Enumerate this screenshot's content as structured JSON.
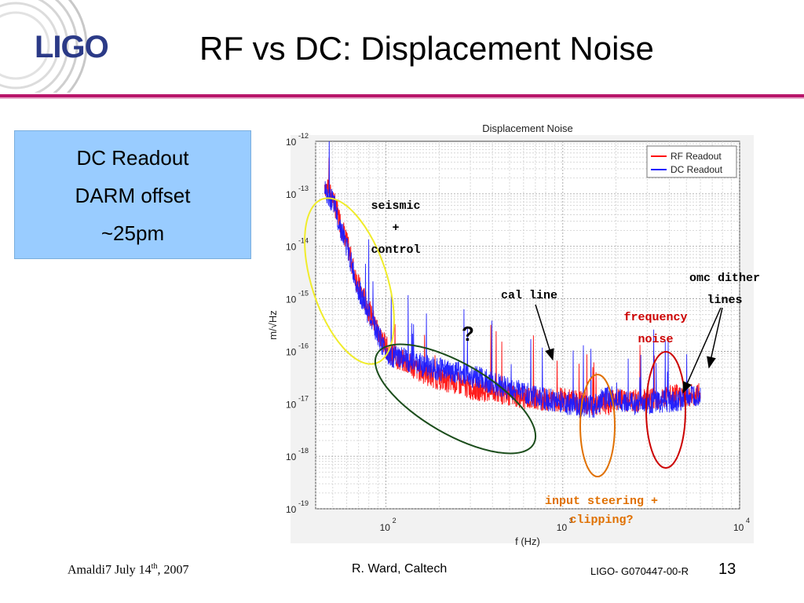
{
  "slide": {
    "logo": "LIGO",
    "title": "RF vs DC: Displacement Noise",
    "info_box": [
      "DC Readout",
      "DARM offset",
      "~25pm"
    ],
    "footer": {
      "left": "Amaldi7 July 14",
      "left_sup": "th",
      "left_end": ", 2007",
      "center": "R. Ward, Caltech",
      "doc_id": "LIGO- G070447-00-R",
      "page": "13"
    },
    "colors": {
      "accent_rule": "#b8156a",
      "info_box": "#99ccff",
      "logo": "#2b3a87"
    }
  },
  "chart_data": {
    "type": "line",
    "title": "Displacement Noise",
    "xlabel": "f (Hz)",
    "ylabel": "m/√Hz",
    "xscale": "log",
    "yscale": "log",
    "xlim": [
      40,
      10000
    ],
    "ylim": [
      1e-19,
      1e-12
    ],
    "x_ticks": [
      "10^2",
      "10^3",
      "10^4"
    ],
    "y_ticks": [
      "10^-12",
      "10^-13",
      "10^-14",
      "10^-15",
      "10^-16",
      "10^-17",
      "10^-18",
      "10^-19"
    ],
    "grid": true,
    "legend": "top-right",
    "series": [
      {
        "name": "RF Readout",
        "color": "#ff1010",
        "x": [
          45,
          50,
          55,
          60,
          65,
          70,
          80,
          90,
          100,
          110,
          130,
          160,
          200,
          250,
          300,
          400,
          500,
          600,
          800,
          1000,
          1200,
          1500,
          1800,
          2000,
          2500,
          3000,
          3500,
          4000,
          5000,
          6000
        ],
        "y": [
          1.5e-13,
          8e-14,
          3e-14,
          1.2e-14,
          4e-15,
          1.8e-15,
          6e-16,
          2.5e-16,
          1.2e-16,
          8e-17,
          6e-17,
          4e-17,
          3e-17,
          2.5e-17,
          2e-17,
          1.7e-17,
          1.5e-17,
          1.3e-17,
          1.2e-17,
          1.2e-17,
          1.1e-17,
          1e-17,
          1e-17,
          1.2e-17,
          1.1e-17,
          1.3e-17,
          1.3e-17,
          1.4e-17,
          1.4e-17,
          1.5e-17
        ]
      },
      {
        "name": "DC Readout",
        "color": "#1a1aff",
        "x": [
          45,
          50,
          55,
          60,
          65,
          70,
          80,
          90,
          100,
          110,
          130,
          160,
          200,
          250,
          300,
          400,
          500,
          600,
          800,
          1000,
          1200,
          1500,
          1800,
          2000,
          2500,
          3000,
          3500,
          4000,
          5000,
          6000
        ],
        "y": [
          1.3e-13,
          7e-14,
          2.5e-14,
          1e-14,
          3.5e-15,
          1.5e-15,
          5e-16,
          2e-16,
          1e-16,
          8e-17,
          7e-17,
          5.5e-17,
          4.5e-17,
          4e-17,
          3.5e-17,
          2.5e-17,
          2e-17,
          1.6e-17,
          1.2e-17,
          1.1e-17,
          9e-18,
          9e-18,
          1.4e-17,
          1.2e-17,
          1e-17,
          1e-17,
          1.1e-17,
          1.1e-17,
          1.3e-17,
          1.5e-17
        ]
      }
    ],
    "annotations": [
      {
        "text": [
          "seismic",
          "+",
          "control"
        ],
        "color": "#000000",
        "shape": "yellow-ellipse"
      },
      {
        "text": [
          "?"
        ],
        "color": "#000000",
        "shape": "green-ellipse"
      },
      {
        "text": [
          "cal line"
        ],
        "color": "#000000",
        "arrow": true
      },
      {
        "text": [
          "frequency",
          "noise"
        ],
        "color": "#cc0000",
        "shape": "red-ellipse"
      },
      {
        "text": [
          "omc dither",
          "lines"
        ],
        "color": "#000000",
        "arrow": true
      },
      {
        "text": [
          "input steering +",
          "clipping?"
        ],
        "color": "#e07000",
        "shape": "orange-ellipse"
      }
    ]
  }
}
